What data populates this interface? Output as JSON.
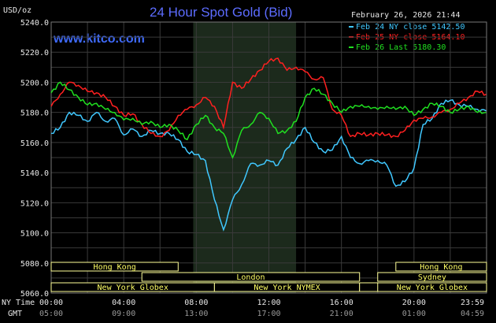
{
  "header": {
    "title": "24 Hour Spot Gold (Bid)",
    "units": "USD/oz",
    "website": "www.kitco.com",
    "timestamp": "February 26, 2026 21:44"
  },
  "legend": [
    {
      "label": "Feb 24 NY close 5142.50",
      "color": "#40c8ff"
    },
    {
      "label": "Feb 25 NY close 5164.10",
      "color": "#ff2020"
    },
    {
      "label": "Feb 26 Last 5180.30",
      "color": "#20e020"
    }
  ],
  "axis": {
    "x_row1_label": "NY Time",
    "x_row2_label": "GMT",
    "x_ticks_ny": [
      "00:00",
      "04:00",
      "08:00",
      "12:00",
      "16:00",
      "20:00",
      "23:59"
    ],
    "x_ticks_gmt": [
      "05:00",
      "09:00",
      "13:00",
      "17:00",
      "21:00",
      "01:00",
      "04:59"
    ],
    "y_ticks": [
      "5240.0",
      "5220.0",
      "5200.0",
      "5180.0",
      "5160.0",
      "5140.0",
      "5120.0",
      "5100.0",
      "5080.0",
      "5060.0"
    ]
  },
  "sessions": [
    {
      "name": "Hong Kong",
      "start_hour": 0,
      "end_hour": 7,
      "row": 0
    },
    {
      "name": "London",
      "start_hour": 5,
      "end_hour": 17,
      "row": 1
    },
    {
      "name": "New York Globex",
      "start_hour": 0,
      "end_hour": 9,
      "row": 2
    },
    {
      "name": "New York NYMEX",
      "start_hour": 9,
      "end_hour": 17,
      "row": 2
    },
    {
      "name": "NY Globex",
      "start_hour": 17,
      "end_hour": 25,
      "row": 2
    },
    {
      "name": "Hong Kong",
      "start_hour": 19,
      "end_hour": 24,
      "row": 0
    },
    {
      "name": "Sydney",
      "start_hour": 18,
      "end_hour": 24,
      "row": 1
    },
    {
      "name": "New York Globex",
      "start_hour": 18,
      "end_hour": 24,
      "row": 2
    }
  ],
  "colors": {
    "background": "#000000",
    "shaded_band": "#1c2a1c",
    "grid": "#3a3a3a",
    "session_box": "#ffff99"
  },
  "chart_data": {
    "type": "line",
    "title": "24 Hour Spot Gold (Bid)",
    "ylabel": "USD/oz",
    "xlabel": "NY Time",
    "xlim": [
      0,
      24
    ],
    "ylim": [
      5060,
      5240
    ],
    "grid": true,
    "legend_position": "top-right",
    "shaded_region_hours": [
      7.83,
      13.5
    ],
    "series": [
      {
        "name": "Feb 24 NY close 5142.50",
        "color": "#40c8ff",
        "x": [
          0,
          0.5,
          1,
          1.5,
          2,
          2.5,
          3,
          3.5,
          4,
          4.5,
          5,
          5.5,
          6,
          6.5,
          7,
          7.5,
          8,
          8.5,
          9,
          9.5,
          10,
          10.5,
          11,
          11.5,
          12,
          12.5,
          13,
          13.5,
          14,
          14.5,
          15,
          15.5,
          16,
          16.5,
          17,
          17.5,
          18,
          18.5,
          19,
          19.5,
          20,
          20.5,
          21,
          21.5,
          22,
          22.5,
          23,
          23.5,
          23.98
        ],
        "y": [
          5166,
          5170,
          5180,
          5178,
          5174,
          5180,
          5174,
          5176,
          5165,
          5169,
          5164,
          5168,
          5166,
          5166,
          5162,
          5154,
          5152,
          5148,
          5122,
          5102,
          5122,
          5132,
          5146,
          5145,
          5148,
          5145,
          5156,
          5162,
          5170,
          5160,
          5154,
          5155,
          5164,
          5150,
          5146,
          5148,
          5148,
          5145,
          5131,
          5134,
          5143,
          5172,
          5176,
          5186,
          5188,
          5185,
          5184,
          5182,
          5181
        ]
      },
      {
        "name": "Feb 25 NY close 5164.10",
        "color": "#ff2020",
        "x": [
          0,
          0.5,
          1,
          1.5,
          2,
          2.5,
          3,
          3.5,
          4,
          4.5,
          5,
          5.5,
          6,
          6.5,
          7,
          7.5,
          8,
          8.5,
          9,
          9.5,
          10,
          10.5,
          11,
          11.5,
          12,
          12.5,
          13,
          13.5,
          14,
          14.5,
          15,
          15.5,
          16,
          16.5,
          17,
          17.5,
          18,
          18.5,
          19,
          19.5,
          20,
          20.5,
          21,
          21.5,
          22,
          22.5,
          23,
          23.5,
          23.98
        ],
        "y": [
          5184,
          5192,
          5200,
          5198,
          5194,
          5193,
          5190,
          5184,
          5178,
          5179,
          5172,
          5166,
          5164,
          5168,
          5178,
          5182,
          5185,
          5190,
          5184,
          5170,
          5200,
          5196,
          5202,
          5208,
          5214,
          5216,
          5208,
          5210,
          5207,
          5202,
          5203,
          5182,
          5178,
          5164,
          5166,
          5165,
          5166,
          5165,
          5164,
          5168,
          5175,
          5176,
          5177,
          5180,
          5182,
          5186,
          5190,
          5194,
          5192
        ]
      },
      {
        "name": "Feb 26 Last 5180.30",
        "color": "#20e020",
        "x": [
          0,
          0.5,
          1,
          1.5,
          2,
          2.5,
          3,
          3.5,
          4,
          4.5,
          5,
          5.5,
          6,
          6.5,
          7,
          7.5,
          8,
          8.5,
          9,
          9.5,
          10,
          10.5,
          11,
          11.5,
          12,
          12.5,
          13,
          13.5,
          14,
          14.5,
          15,
          15.5,
          16,
          16.5,
          17,
          17.5,
          18,
          18.5,
          19,
          19.5,
          20,
          20.5,
          21,
          21.5,
          22,
          22.5,
          23,
          23.5,
          23.98
        ],
        "y": [
          5193,
          5200,
          5195,
          5190,
          5185,
          5186,
          5182,
          5180,
          5175,
          5176,
          5172,
          5174,
          5170,
          5172,
          5168,
          5162,
          5172,
          5178,
          5170,
          5166,
          5150,
          5168,
          5172,
          5180,
          5176,
          5166,
          5168,
          5174,
          5190,
          5196,
          5192,
          5186,
          5180,
          5184,
          5184,
          5184,
          5182,
          5184,
          5182,
          5184,
          5178,
          5182,
          5186,
          5184,
          5180,
          5182,
          5184,
          5180,
          5180
        ]
      }
    ]
  }
}
